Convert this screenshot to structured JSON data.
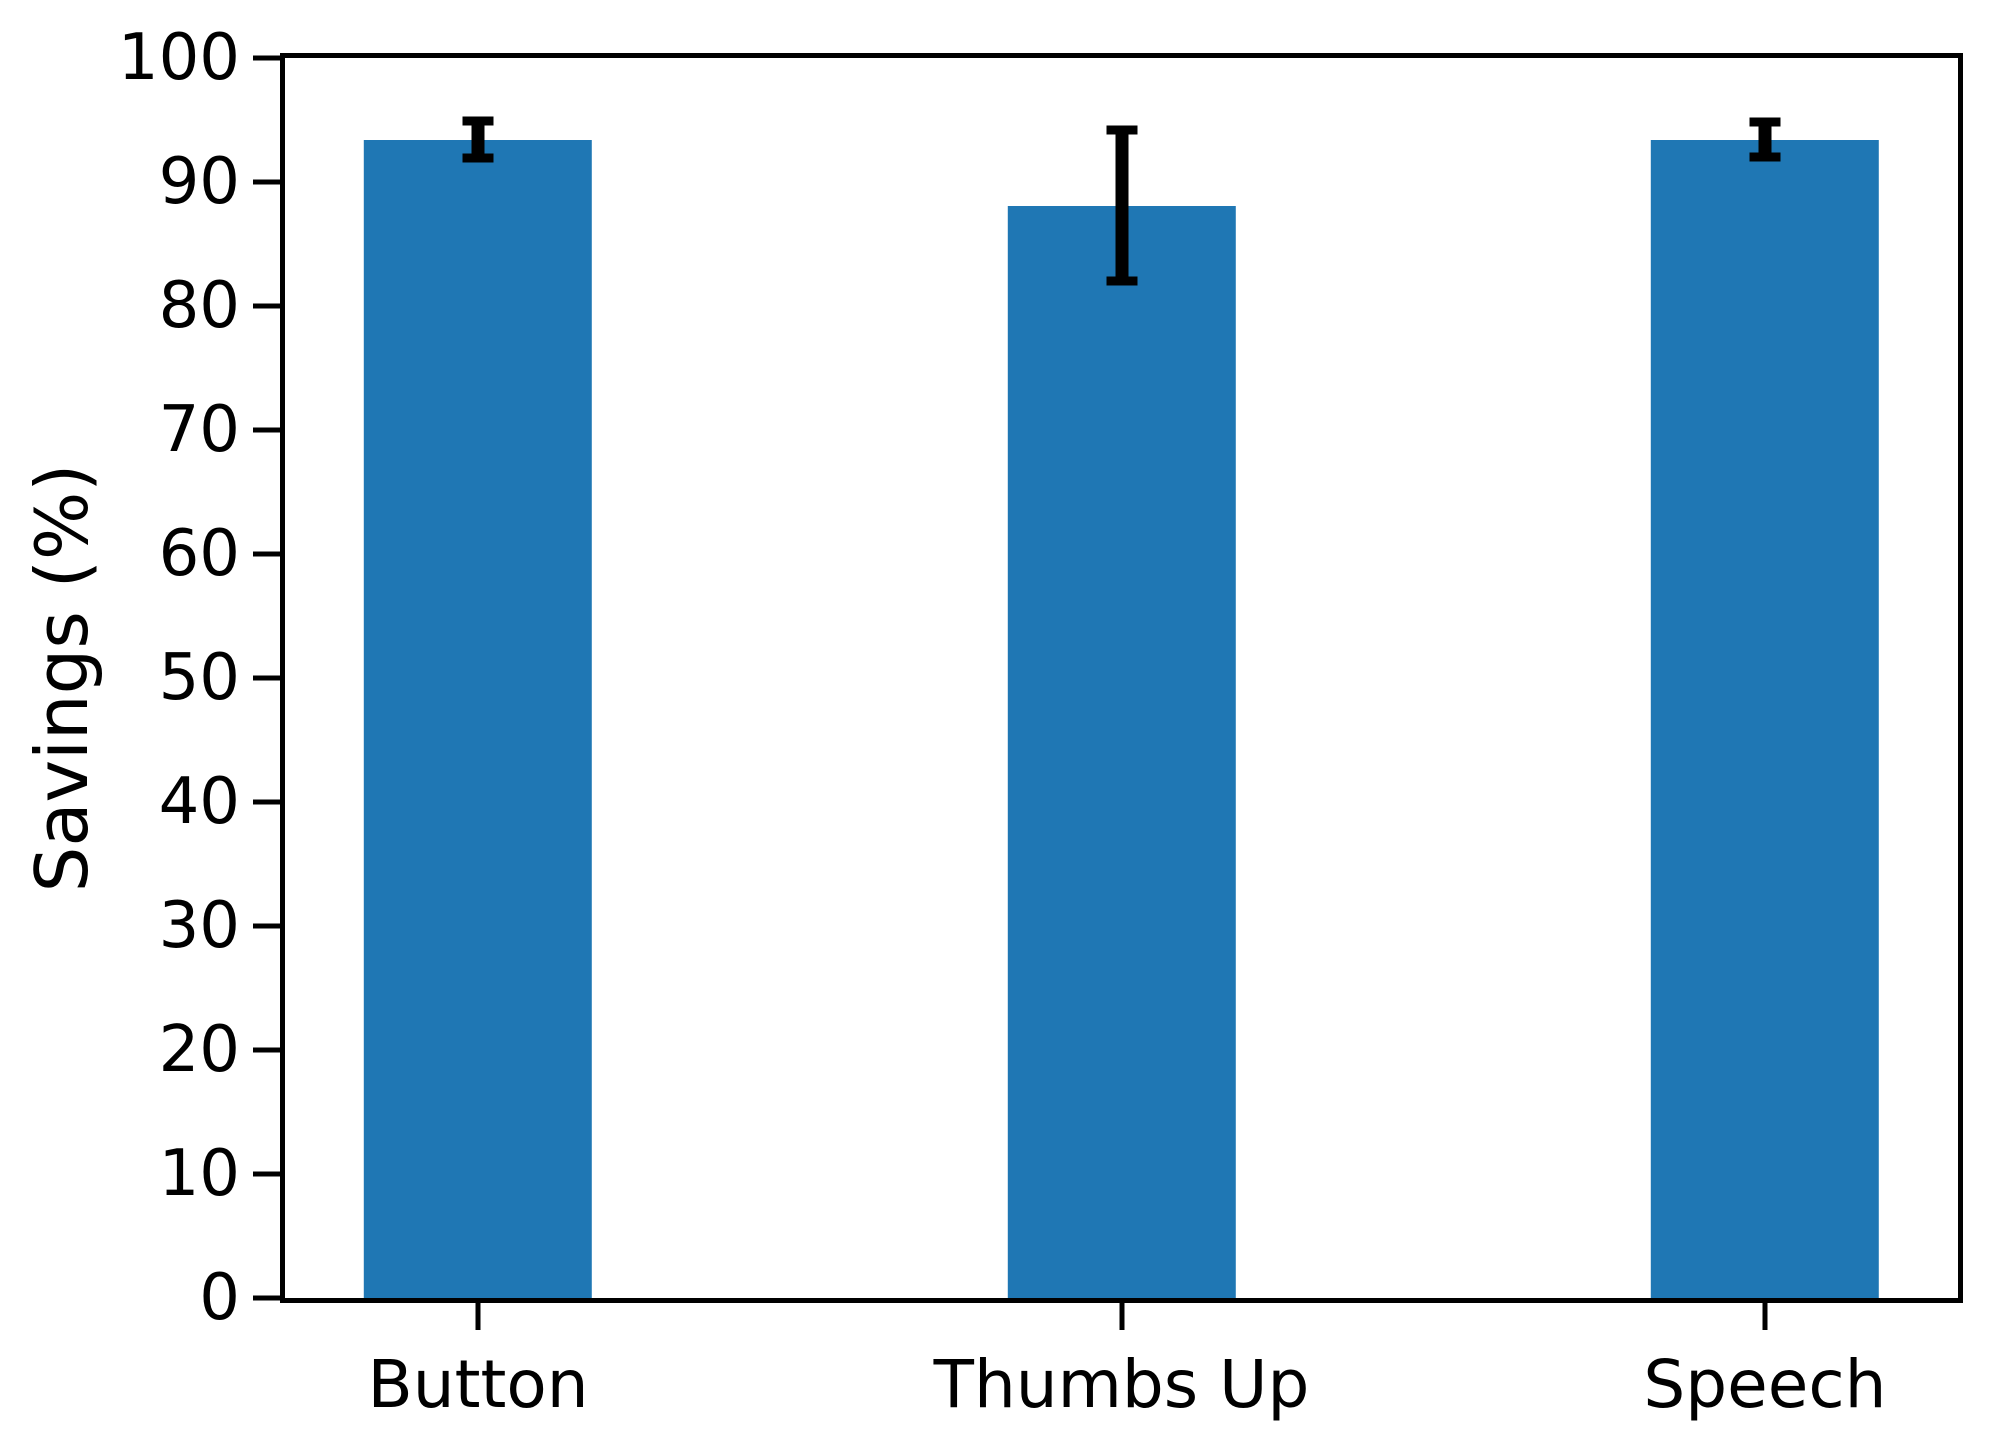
{
  "chart_data": {
    "type": "bar",
    "title": "",
    "xlabel": "",
    "ylabel": "Savings (%)",
    "categories": [
      "Button",
      "Thumbs Up",
      "Speech"
    ],
    "values": [
      93.4,
      88.1,
      93.4
    ],
    "errors": [
      1.5,
      6.1,
      1.4
    ],
    "ylim": [
      0,
      100
    ],
    "xlim": [
      -0.3,
      2.3
    ],
    "yticks": [
      0,
      10,
      20,
      30,
      40,
      50,
      60,
      70,
      80,
      90,
      100
    ],
    "bar_width_data_units": 0.355,
    "grid": false,
    "legend": null,
    "bar_color": "#1f77b4",
    "error_color": "#000000",
    "axis_color": "#000000",
    "background_color": "#ffffff"
  }
}
